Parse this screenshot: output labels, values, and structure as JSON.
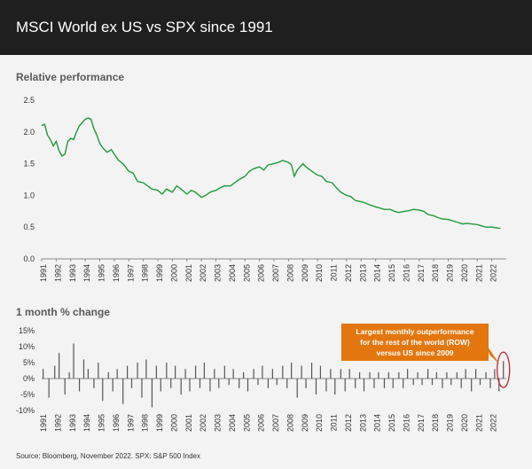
{
  "header": {
    "title": "MSCI World ex US vs SPX since 1991"
  },
  "chart_data": [
    {
      "type": "line",
      "title": "Relative performance",
      "xlabel": "",
      "ylabel": "",
      "ylim": [
        0,
        2.5
      ],
      "yticks": [
        "0.0",
        "0.5",
        "1.0",
        "1.5",
        "2.0",
        "2.5"
      ],
      "ytick_values": [
        0,
        0.5,
        1.0,
        1.5,
        2.0,
        2.5
      ],
      "xticks": [
        "1991",
        "1992",
        "1993",
        "1994",
        "1995",
        "1996",
        "1997",
        "1998",
        "1999",
        "2000",
        "2001",
        "2002",
        "2003",
        "2004",
        "2005",
        "2006",
        "2007",
        "2008",
        "2009",
        "2010",
        "2011",
        "2012",
        "2013",
        "2014",
        "2015",
        "2016",
        "2017",
        "2018",
        "2019",
        "2020",
        "2021",
        "2022"
      ],
      "xlim": [
        1991,
        2023
      ],
      "color": "#1f9a3a",
      "series": [
        {
          "name": "MSCI World ex US / SPX",
          "x": [
            1991.0,
            1991.2,
            1991.4,
            1991.6,
            1991.8,
            1992.0,
            1992.2,
            1992.4,
            1992.6,
            1992.8,
            1993.0,
            1993.2,
            1993.4,
            1993.6,
            1993.8,
            1994.0,
            1994.2,
            1994.4,
            1994.6,
            1994.8,
            1995.0,
            1995.2,
            1995.5,
            1995.8,
            1996.0,
            1996.3,
            1996.6,
            1997.0,
            1997.3,
            1997.6,
            1998.0,
            1998.3,
            1998.6,
            1999.0,
            1999.3,
            1999.6,
            2000.0,
            2000.3,
            2000.6,
            2001.0,
            2001.3,
            2001.6,
            2002.0,
            2002.3,
            2002.6,
            2003.0,
            2003.3,
            2003.6,
            2004.0,
            2004.3,
            2004.6,
            2005.0,
            2005.3,
            2005.6,
            2006.0,
            2006.3,
            2006.6,
            2007.0,
            2007.3,
            2007.6,
            2008.0,
            2008.2,
            2008.4,
            2008.6,
            2008.8,
            2009.0,
            2009.2,
            2009.5,
            2009.8,
            2010.0,
            2010.3,
            2010.6,
            2011.0,
            2011.3,
            2011.6,
            2012.0,
            2012.3,
            2012.6,
            2013.0,
            2013.3,
            2013.6,
            2014.0,
            2014.3,
            2014.6,
            2015.0,
            2015.3,
            2015.6,
            2016.0,
            2016.3,
            2016.6,
            2017.0,
            2017.3,
            2017.6,
            2018.0,
            2018.3,
            2018.6,
            2019.0,
            2019.3,
            2019.6,
            2020.0,
            2020.3,
            2020.6,
            2021.0,
            2021.3,
            2021.6,
            2022.0,
            2022.3,
            2022.6
          ],
          "values": [
            2.1,
            2.12,
            1.95,
            1.88,
            1.78,
            1.85,
            1.7,
            1.62,
            1.65,
            1.85,
            1.9,
            1.88,
            2.0,
            2.1,
            2.15,
            2.2,
            2.22,
            2.2,
            2.05,
            1.95,
            1.82,
            1.75,
            1.68,
            1.72,
            1.65,
            1.55,
            1.5,
            1.38,
            1.35,
            1.22,
            1.2,
            1.15,
            1.1,
            1.08,
            1.02,
            1.1,
            1.05,
            1.15,
            1.1,
            1.02,
            1.08,
            1.05,
            0.97,
            1.0,
            1.05,
            1.08,
            1.12,
            1.15,
            1.15,
            1.2,
            1.25,
            1.3,
            1.38,
            1.42,
            1.45,
            1.4,
            1.48,
            1.5,
            1.52,
            1.55,
            1.52,
            1.48,
            1.3,
            1.4,
            1.45,
            1.5,
            1.45,
            1.4,
            1.35,
            1.32,
            1.3,
            1.22,
            1.2,
            1.12,
            1.05,
            1.0,
            0.98,
            0.92,
            0.9,
            0.88,
            0.85,
            0.82,
            0.8,
            0.78,
            0.78,
            0.75,
            0.73,
            0.75,
            0.76,
            0.78,
            0.77,
            0.75,
            0.7,
            0.68,
            0.65,
            0.63,
            0.62,
            0.6,
            0.58,
            0.55,
            0.56,
            0.55,
            0.54,
            0.52,
            0.5,
            0.5,
            0.49,
            0.48
          ]
        }
      ]
    },
    {
      "type": "bar",
      "title": "1 month % change",
      "ylim": [
        -10,
        15
      ],
      "yticks": [
        "15%",
        "10%",
        "5%",
        "0%",
        "-5%",
        "-10%"
      ],
      "ytick_values": [
        15,
        10,
        5,
        0,
        -5,
        -10
      ],
      "xticks": [
        "1991",
        "1992",
        "1993",
        "1994",
        "1995",
        "1996",
        "1997",
        "1998",
        "1999",
        "2000",
        "2001",
        "2002",
        "2003",
        "2004",
        "2005",
        "2006",
        "2007",
        "2008",
        "2009",
        "2010",
        "2011",
        "2012",
        "2013",
        "2014",
        "2015",
        "2016",
        "2017",
        "2018",
        "2019",
        "2020",
        "2021",
        "2022"
      ],
      "xlim": [
        1991,
        2023
      ],
      "color": "#555555",
      "annotation": {
        "lines": [
          "Largest monthly outperformance",
          "for the rest of the world (ROW)",
          "versus US since 2009"
        ],
        "color": "#e3760e",
        "highlight_year": 2022.8,
        "highlight_value": 5.5
      },
      "series": [
        {
          "name": "1 month % change",
          "x": [
            1991.1,
            1991.5,
            1991.9,
            1992.2,
            1992.6,
            1992.9,
            1993.2,
            1993.6,
            1993.9,
            1994.2,
            1994.6,
            1994.9,
            1995.2,
            1995.6,
            1995.9,
            1996.2,
            1996.6,
            1996.9,
            1997.2,
            1997.6,
            1997.9,
            1998.2,
            1998.6,
            1998.9,
            1999.2,
            1999.6,
            1999.9,
            2000.2,
            2000.6,
            2000.9,
            2001.2,
            2001.6,
            2001.9,
            2002.2,
            2002.6,
            2002.9,
            2003.2,
            2003.6,
            2003.9,
            2004.2,
            2004.6,
            2004.9,
            2005.2,
            2005.6,
            2005.9,
            2006.2,
            2006.6,
            2006.9,
            2007.2,
            2007.6,
            2007.9,
            2008.2,
            2008.6,
            2008.9,
            2009.2,
            2009.6,
            2009.9,
            2010.2,
            2010.6,
            2010.9,
            2011.2,
            2011.6,
            2011.9,
            2012.2,
            2012.6,
            2012.9,
            2013.2,
            2013.6,
            2013.9,
            2014.2,
            2014.6,
            2014.9,
            2015.2,
            2015.6,
            2015.9,
            2016.2,
            2016.6,
            2016.9,
            2017.2,
            2017.6,
            2017.9,
            2018.2,
            2018.6,
            2018.9,
            2019.2,
            2019.6,
            2019.9,
            2020.2,
            2020.6,
            2020.9,
            2021.2,
            2021.6,
            2021.9,
            2022.2,
            2022.5,
            2022.8
          ],
          "values": [
            3,
            -6,
            4,
            8,
            -5,
            2,
            11,
            -4,
            6,
            3,
            -3,
            5,
            -7,
            2,
            -4,
            3,
            -8,
            4,
            -3,
            5,
            -6,
            6,
            -9,
            4,
            -4,
            5,
            -3,
            4,
            -5,
            3,
            -4,
            4,
            -3,
            5,
            -4,
            3,
            -3,
            4,
            -2,
            3,
            -3,
            2,
            -4,
            3,
            -2,
            4,
            -3,
            3,
            -2,
            4,
            -3,
            5,
            -6,
            4,
            -3,
            5,
            -5,
            4,
            -4,
            3,
            -5,
            3,
            -4,
            3,
            -3,
            2,
            -4,
            2,
            -3,
            2,
            -3,
            2,
            -3,
            2,
            -3,
            3,
            -2,
            2,
            -2,
            3,
            -2,
            2,
            -3,
            2,
            -2,
            2,
            -3,
            3,
            -4,
            3,
            -2,
            2,
            -3,
            3,
            -4,
            5.5
          ]
        }
      ]
    }
  ],
  "source": "Source: Bloomberg, November 2022. SPX: S&P 500 Index"
}
